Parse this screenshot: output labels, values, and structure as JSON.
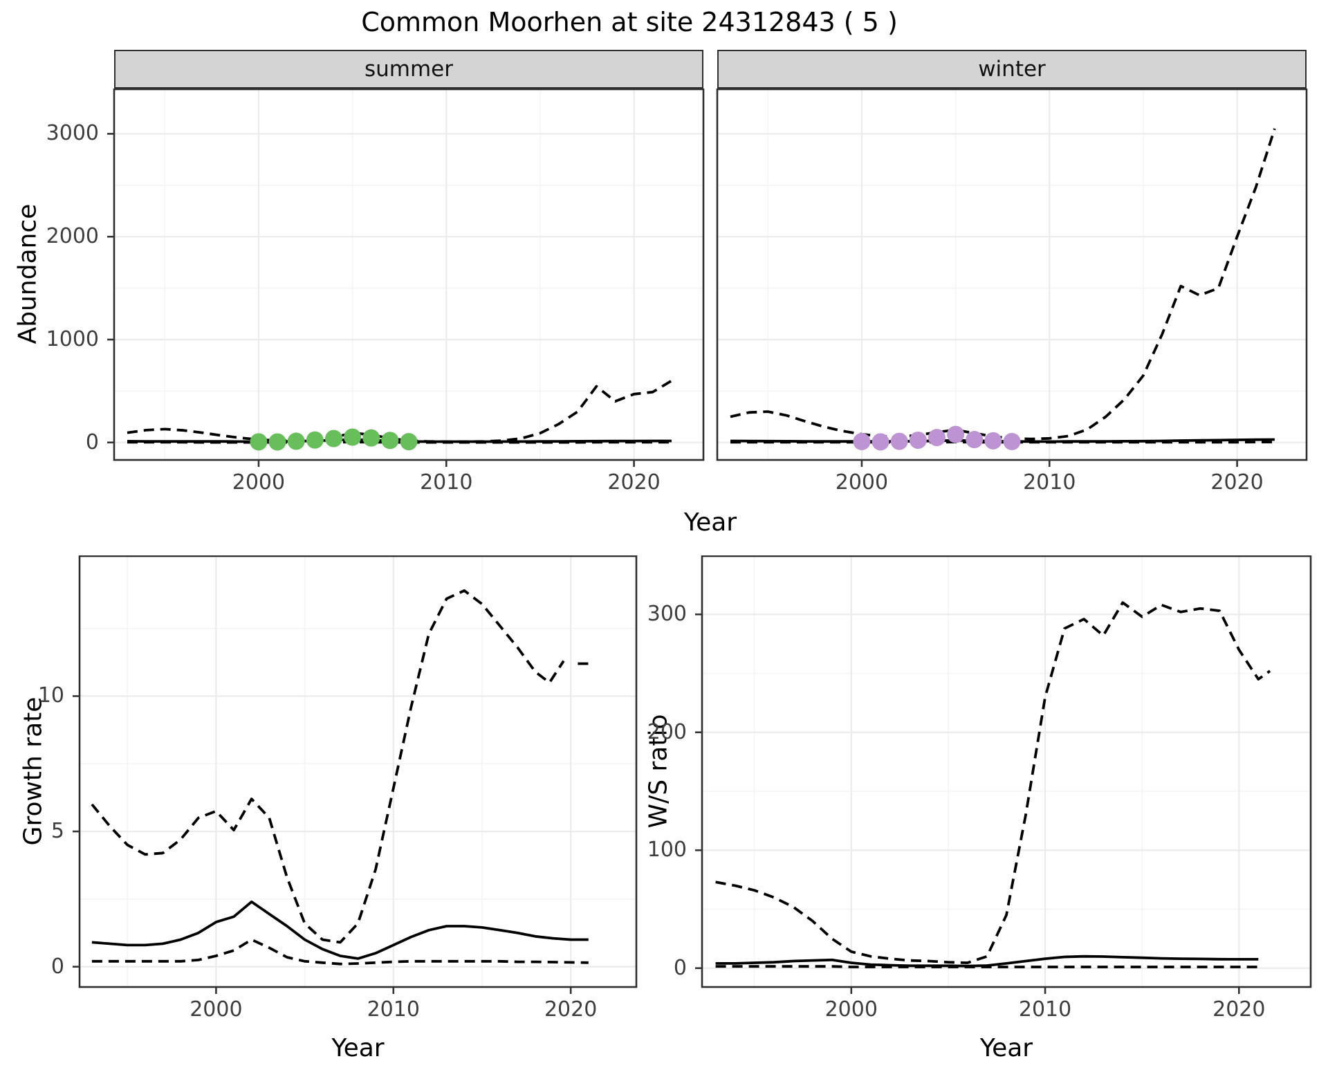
{
  "title": "Common Moorhen at site 24312843 ( 5 )",
  "facets": [
    "summer",
    "winter"
  ],
  "axes": {
    "x_label": "Year",
    "abundance_label": "Abundance",
    "growth_label": "Growth rate",
    "ws_label": "W/S ratio"
  },
  "colors": {
    "summer_points": "#69BE5C",
    "winter_points": "#BD93D3",
    "line": "#000000",
    "strip_bg": "#D4D4D4",
    "grid_major": "#EBEBEB",
    "grid_minor": "#F4F4F4",
    "panel_border": "#2E2E2E",
    "tick_text": "#3d3d3d"
  },
  "chart_data": [
    {
      "id": "abundance-summer",
      "type": "line",
      "facet": "summer",
      "xlabel": "Year",
      "ylabel": "Abundance",
      "xlim": [
        1992.3,
        2023.7
      ],
      "ylim": [
        -170,
        3440
      ],
      "xticks": [
        2000,
        2010,
        2020
      ],
      "xminor": [
        1995,
        2005,
        2015
      ],
      "yticks": [
        0,
        1000,
        2000,
        3000
      ],
      "yminor": [
        500,
        1500,
        2500
      ],
      "grid": true,
      "legend": "none",
      "series": [
        {
          "name": "lower-ci",
          "style": "dashed",
          "x": [
            1993,
            1994,
            1995,
            1996,
            1997,
            1998,
            1999,
            2000,
            2001,
            2002,
            2003,
            2004,
            2005,
            2006,
            2007,
            2008,
            2009,
            2010,
            2011,
            2012,
            2013,
            2014,
            2015,
            2016,
            2017,
            2018,
            2019,
            2020,
            2021,
            2022
          ],
          "y": [
            2,
            2,
            2,
            2,
            1,
            1,
            1,
            1,
            1,
            1,
            2,
            3,
            4,
            3,
            2,
            1,
            1,
            1,
            1,
            1,
            1,
            1,
            1,
            1,
            1,
            2,
            2,
            2,
            2,
            2
          ]
        },
        {
          "name": "fitted",
          "style": "solid",
          "x": [
            1993,
            1994,
            1995,
            1996,
            1997,
            1998,
            1999,
            2000,
            2001,
            2002,
            2003,
            2004,
            2005,
            2006,
            2007,
            2008,
            2009,
            2010,
            2011,
            2012,
            2013,
            2014,
            2015,
            2016,
            2017,
            2018,
            2019,
            2020,
            2021,
            2022
          ],
          "y": [
            12,
            11,
            10,
            10,
            10,
            10,
            9,
            8,
            9,
            12,
            16,
            22,
            28,
            24,
            16,
            10,
            8,
            8,
            8,
            8,
            9,
            9,
            10,
            11,
            12,
            13,
            14,
            14,
            15,
            15
          ]
        },
        {
          "name": "upper-ci",
          "style": "dashed",
          "x": [
            1993,
            1994,
            1995,
            1996,
            1997,
            1998,
            1999,
            2000,
            2001,
            2002,
            2003,
            2004,
            2005,
            2006,
            2007,
            2008,
            2009,
            2010,
            2011,
            2012,
            2013,
            2014,
            2015,
            2016,
            2017,
            2018,
            2019,
            2020,
            2021,
            2022
          ],
          "y": [
            95,
            120,
            130,
            118,
            95,
            68,
            45,
            28,
            18,
            22,
            35,
            50,
            92,
            75,
            40,
            18,
            10,
            8,
            8,
            10,
            18,
            40,
            90,
            180,
            300,
            545,
            400,
            470,
            490,
            600
          ]
        }
      ],
      "points": {
        "name": "observed-summer",
        "color": "#69BE5C",
        "x": [
          2000,
          2001,
          2002,
          2003,
          2004,
          2005,
          2006,
          2007,
          2008
        ],
        "y": [
          6,
          5,
          12,
          24,
          38,
          52,
          44,
          20,
          8
        ]
      }
    },
    {
      "id": "abundance-winter",
      "type": "line",
      "facet": "winter",
      "xlabel": "Year",
      "ylabel": "Abundance",
      "xlim": [
        1992.3,
        2023.7
      ],
      "ylim": [
        -170,
        3440
      ],
      "xticks": [
        2000,
        2010,
        2020
      ],
      "xminor": [
        1995,
        2005,
        2015
      ],
      "yticks": [
        0,
        1000,
        2000,
        3000
      ],
      "yminor": [
        500,
        1500,
        2500
      ],
      "grid": true,
      "legend": "none",
      "series": [
        {
          "name": "lower-ci",
          "style": "dashed",
          "x": [
            1993,
            1994,
            1995,
            1996,
            1997,
            1998,
            1999,
            2000,
            2001,
            2002,
            2003,
            2004,
            2005,
            2006,
            2007,
            2008,
            2009,
            2010,
            2011,
            2012,
            2013,
            2014,
            2015,
            2016,
            2017,
            2018,
            2019,
            2020,
            2021,
            2022
          ],
          "y": [
            3,
            3,
            3,
            2,
            2,
            2,
            2,
            2,
            2,
            2,
            2,
            3,
            4,
            3,
            2,
            2,
            2,
            2,
            2,
            2,
            2,
            2,
            2,
            2,
            3,
            3,
            3,
            3,
            4,
            4
          ]
        },
        {
          "name": "fitted",
          "style": "solid",
          "x": [
            1993,
            1994,
            1995,
            1996,
            1997,
            1998,
            1999,
            2000,
            2001,
            2002,
            2003,
            2004,
            2005,
            2006,
            2007,
            2008,
            2009,
            2010,
            2011,
            2012,
            2013,
            2014,
            2015,
            2016,
            2017,
            2018,
            2019,
            2020,
            2021,
            2022
          ],
          "y": [
            15,
            14,
            13,
            12,
            11,
            10,
            10,
            10,
            10,
            11,
            13,
            16,
            20,
            17,
            13,
            10,
            9,
            9,
            10,
            10,
            11,
            12,
            13,
            15,
            18,
            20,
            22,
            25,
            27,
            28
          ]
        },
        {
          "name": "upper-ci",
          "style": "dashed",
          "x": [
            1993,
            1994,
            1995,
            1996,
            1997,
            1998,
            1999,
            2000,
            2001,
            2002,
            2003,
            2004,
            2005,
            2006,
            2007,
            2008,
            2009,
            2010,
            2011,
            2012,
            2013,
            2014,
            2015,
            2016,
            2017,
            2018,
            2019,
            2020,
            2021,
            2022
          ],
          "y": [
            250,
            292,
            300,
            262,
            205,
            152,
            110,
            80,
            60,
            55,
            70,
            100,
            122,
            90,
            58,
            40,
            34,
            40,
            62,
            125,
            250,
            420,
            650,
            1050,
            1520,
            1430,
            1500,
            2000,
            2480,
            3050
          ]
        }
      ],
      "points": {
        "name": "observed-winter",
        "color": "#BD93D3",
        "x": [
          2000,
          2001,
          2002,
          2003,
          2004,
          2005,
          2006,
          2007,
          2008
        ],
        "y": [
          9,
          6,
          11,
          22,
          48,
          78,
          28,
          16,
          9
        ]
      }
    },
    {
      "id": "growth-rate",
      "type": "line",
      "facet": null,
      "xlabel": "Year",
      "ylabel": "Growth rate",
      "xlim": [
        1992.3,
        2023.7
      ],
      "ylim": [
        -0.75,
        15.2
      ],
      "xticks": [
        2000,
        2010,
        2020
      ],
      "xminor": [
        1995,
        2005,
        2015
      ],
      "yticks": [
        0,
        5,
        10
      ],
      "yminor": [
        2.5,
        7.5,
        12.5
      ],
      "grid": true,
      "legend": "none",
      "series": [
        {
          "name": "lower-ci",
          "style": "dashed",
          "x": [
            1993,
            1994,
            1995,
            1996,
            1997,
            1998,
            1999,
            2000,
            2001,
            2002,
            2003,
            2004,
            2005,
            2006,
            2007,
            2008,
            2009,
            2010,
            2011,
            2012,
            2013,
            2014,
            2015,
            2016,
            2017,
            2018,
            2019,
            2020,
            2021
          ],
          "y": [
            0.2,
            0.2,
            0.2,
            0.2,
            0.2,
            0.2,
            0.25,
            0.4,
            0.6,
            1.0,
            0.7,
            0.35,
            0.2,
            0.15,
            0.1,
            0.12,
            0.15,
            0.18,
            0.2,
            0.2,
            0.2,
            0.2,
            0.2,
            0.2,
            0.18,
            0.18,
            0.17,
            0.16,
            0.15
          ]
        },
        {
          "name": "fitted",
          "style": "solid",
          "x": [
            1993,
            1994,
            1995,
            1996,
            1997,
            1998,
            1999,
            2000,
            2001,
            2002,
            2003,
            2004,
            2005,
            2006,
            2007,
            2008,
            2009,
            2010,
            2011,
            2012,
            2013,
            2014,
            2015,
            2016,
            2017,
            2018,
            2019,
            2020,
            2021
          ],
          "y": [
            0.9,
            0.85,
            0.8,
            0.8,
            0.85,
            1.0,
            1.25,
            1.65,
            1.85,
            2.4,
            1.95,
            1.5,
            1.0,
            0.65,
            0.4,
            0.3,
            0.5,
            0.8,
            1.1,
            1.35,
            1.5,
            1.5,
            1.45,
            1.35,
            1.25,
            1.12,
            1.05,
            1.0,
            1.0
          ]
        },
        {
          "name": "upper-ci",
          "style": "dashed",
          "x": [
            1993,
            1994,
            1995,
            1996,
            1997,
            1998,
            1999,
            2000,
            2001,
            2002,
            2003,
            2004,
            2005,
            2006,
            2007,
            2008,
            2009,
            2010,
            2011,
            2012,
            2013,
            2014,
            2015,
            2016,
            2017,
            2018,
            2018.8,
            2019.6,
            2020,
            2020.4,
            2021.1
          ],
          "y": [
            6.0,
            5.2,
            4.5,
            4.15,
            4.2,
            4.7,
            5.5,
            5.75,
            5.05,
            6.2,
            5.5,
            3.3,
            1.6,
            1.0,
            0.9,
            1.6,
            3.6,
            6.6,
            9.6,
            12.3,
            13.6,
            13.9,
            13.4,
            12.6,
            11.8,
            10.9,
            10.5,
            11.3,
            null,
            11.2,
            11.2
          ]
        }
      ],
      "points": null
    },
    {
      "id": "ws-ratio",
      "type": "line",
      "facet": null,
      "xlabel": "Year",
      "ylabel": "W/S ratio",
      "xlim": [
        1992.3,
        2023.7
      ],
      "ylim": [
        -16,
        350
      ],
      "xticks": [
        2000,
        2010,
        2020
      ],
      "xminor": [
        1995,
        2005,
        2015
      ],
      "yticks": [
        0,
        100,
        200,
        300
      ],
      "yminor": [
        50,
        150,
        250
      ],
      "grid": true,
      "legend": "none",
      "series": [
        {
          "name": "lower-ci",
          "style": "dashed",
          "x": [
            1993,
            1994,
            1995,
            1996,
            1997,
            1998,
            1999,
            2000,
            2001,
            2002,
            2003,
            2004,
            2005,
            2006,
            2007,
            2008,
            2009,
            2010,
            2011,
            2012,
            2013,
            2014,
            2015,
            2016,
            2017,
            2018,
            2019,
            2020,
            2021
          ],
          "y": [
            1.5,
            1.5,
            1.5,
            1.5,
            1.5,
            1.5,
            1.5,
            1,
            1,
            1,
            1,
            1,
            1,
            1,
            1,
            1,
            1,
            1,
            1,
            1,
            1,
            1,
            1,
            1,
            1,
            1,
            1,
            1,
            1
          ]
        },
        {
          "name": "fitted",
          "style": "solid",
          "x": [
            1993,
            1994,
            1995,
            1996,
            1997,
            1998,
            1999,
            2000,
            2001,
            2002,
            2003,
            2004,
            2005,
            2006,
            2007,
            2008,
            2009,
            2010,
            2011,
            2012,
            2013,
            2014,
            2015,
            2016,
            2017,
            2018,
            2019,
            2020,
            2021
          ],
          "y": [
            4,
            4,
            4.5,
            5,
            6,
            6.5,
            7,
            4.5,
            3,
            2.5,
            2,
            2,
            2,
            1.8,
            2.2,
            4,
            6,
            8,
            9.5,
            10,
            9.8,
            9.3,
            8.8,
            8.3,
            8,
            7.8,
            7.6,
            7.5,
            7.5
          ]
        },
        {
          "name": "upper-ci",
          "style": "dashed",
          "x": [
            1993,
            1994,
            1995,
            1996,
            1997,
            1998,
            1999,
            2000,
            2001,
            2002,
            2003,
            2004,
            2005,
            2006,
            2007,
            2008,
            2009,
            2010,
            2011,
            2012,
            2013,
            2014,
            2015,
            2016,
            2017,
            2018,
            2019,
            2020,
            2021,
            2021.6
          ],
          "y": [
            73,
            70,
            66,
            60,
            52,
            40,
            25,
            14,
            10,
            8,
            6.5,
            6,
            5,
            4.5,
            10,
            45,
            130,
            230,
            288,
            296,
            282,
            310,
            298,
            308,
            302,
            305,
            303,
            270,
            245,
            252
          ]
        }
      ],
      "points": null
    }
  ]
}
